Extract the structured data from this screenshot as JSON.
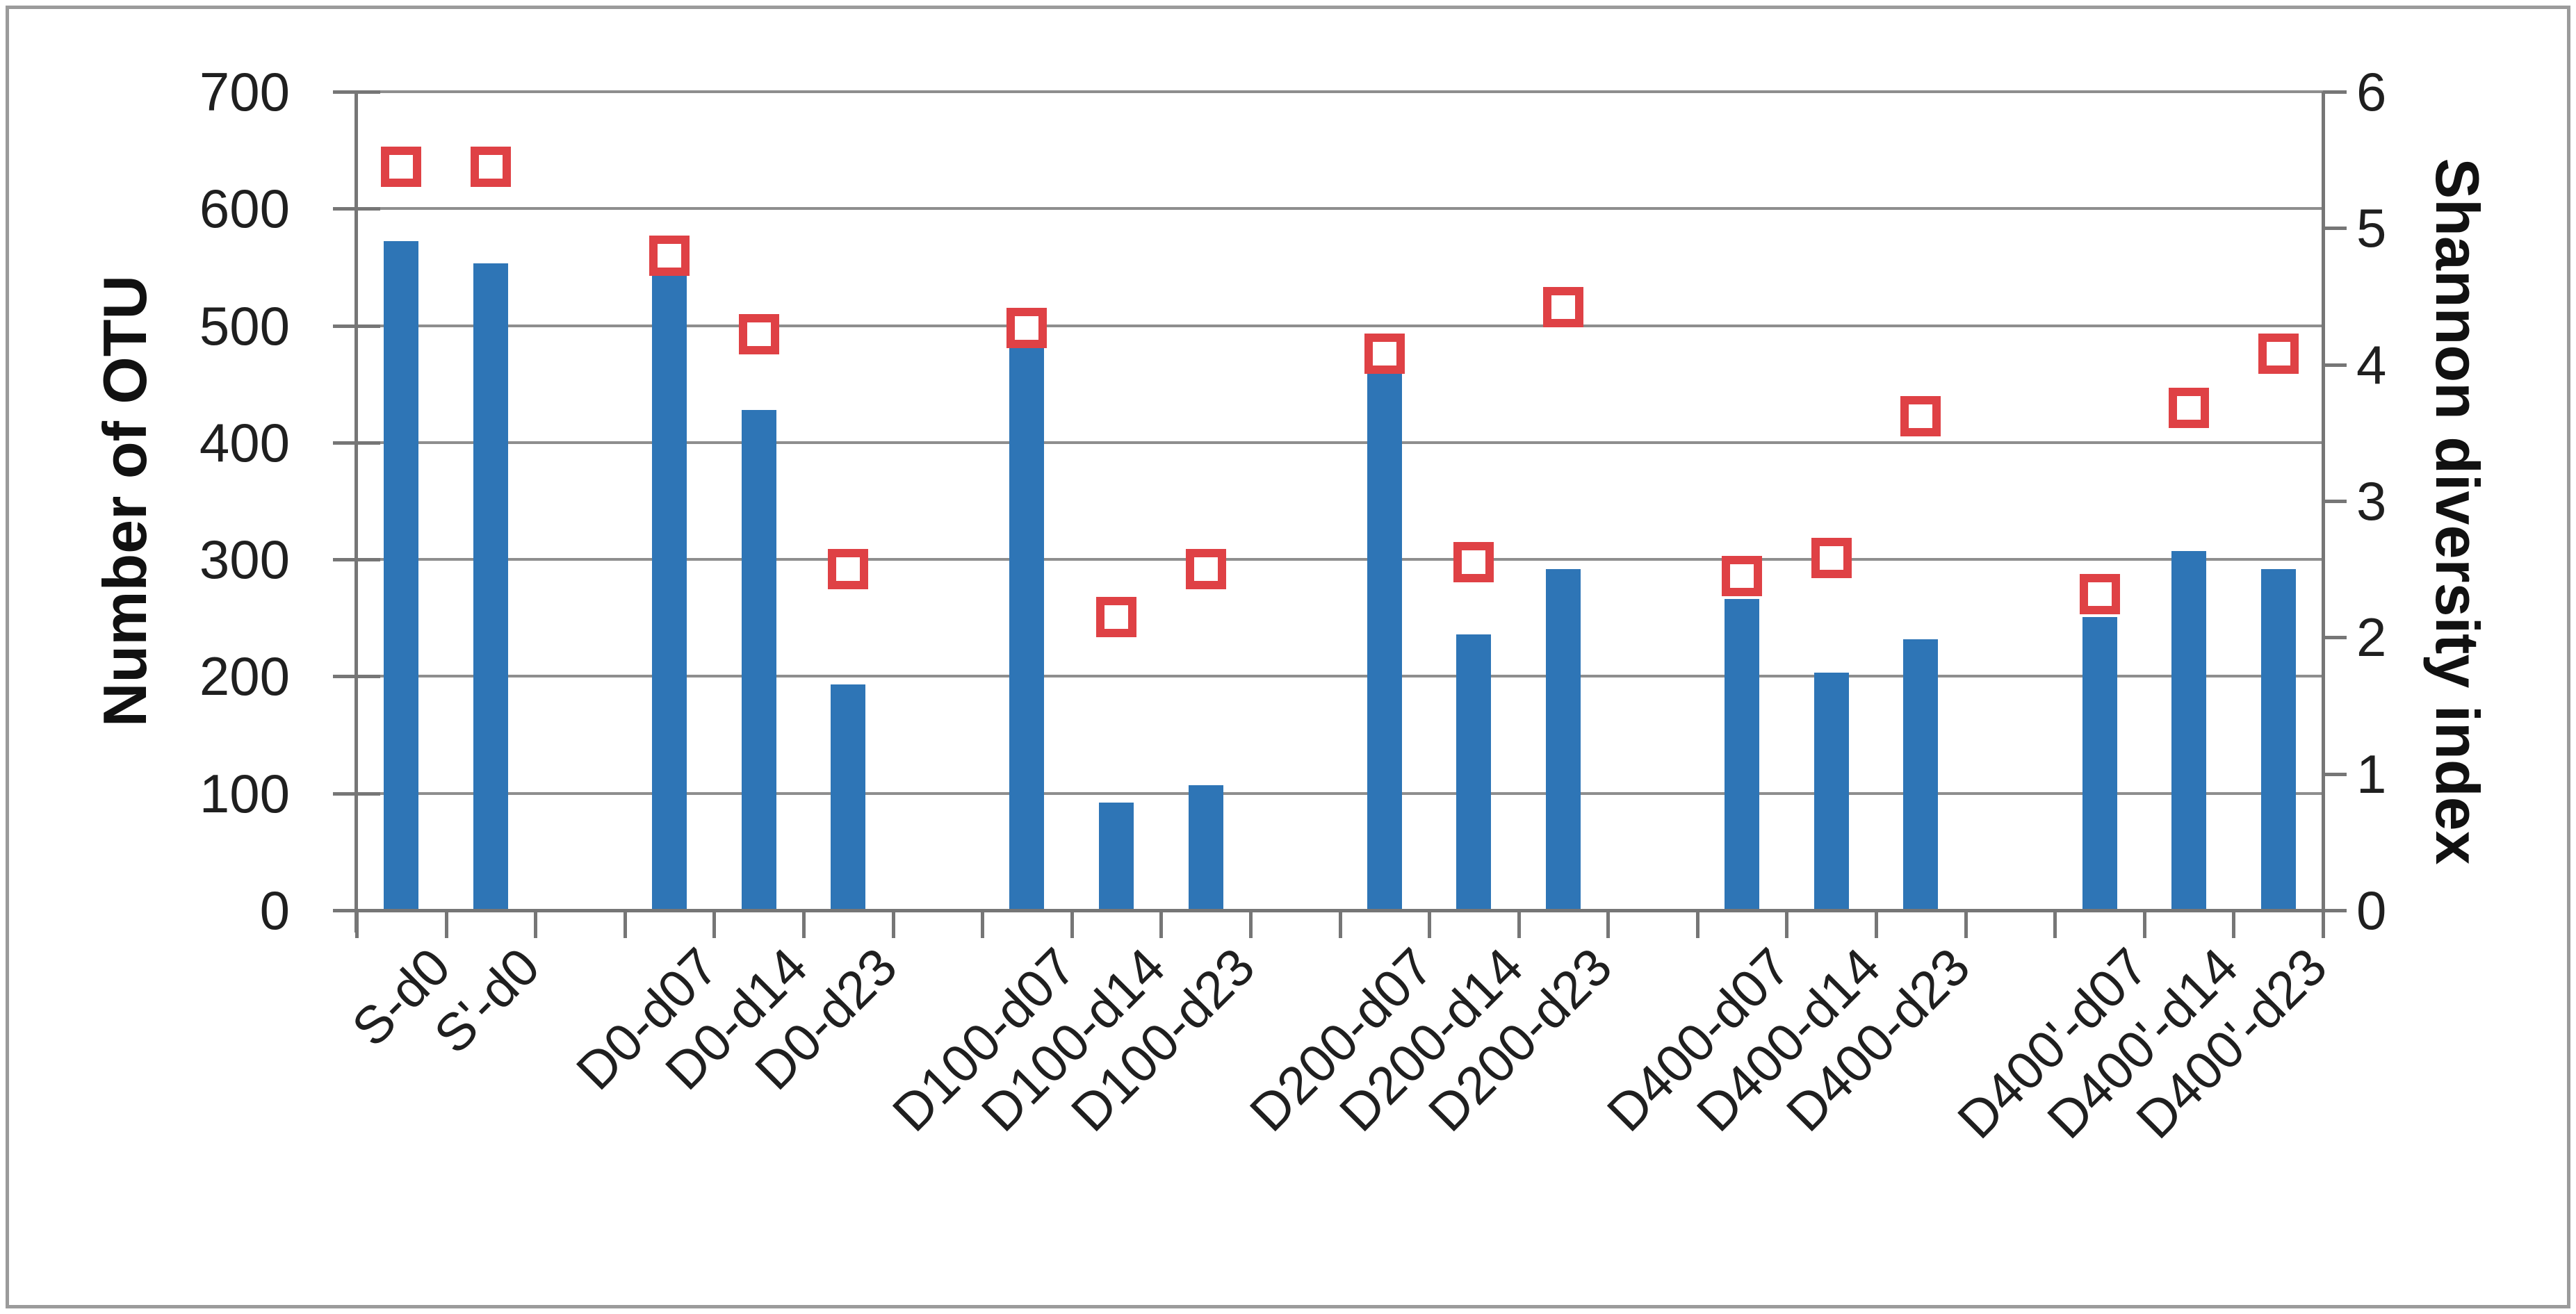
{
  "chart_data": {
    "type": "bar",
    "title": "",
    "categories": [
      "S-d0",
      "S'-d0",
      "D0-d07",
      "D0-d14",
      "D0-d23",
      "D100-d07",
      "D100-d14",
      "D100-d23",
      "D200-d07",
      "D200-d14",
      "D200-d23",
      "D400-d07",
      "D400-d14",
      "D400-d23",
      "D400'-d07",
      "D400'-d14",
      "D400'-d23"
    ],
    "groups": [
      "S",
      "S",
      "D0",
      "D0",
      "D0",
      "D100",
      "D100",
      "D100",
      "D200",
      "D200",
      "D200",
      "D400",
      "D400",
      "D400",
      "D400'",
      "D400'",
      "D400'"
    ],
    "series": [
      {
        "name": "Number of OTU",
        "type": "bar",
        "axis": "left",
        "values": [
          572,
          553,
          545,
          428,
          193,
          490,
          92,
          107,
          460,
          236,
          292,
          266,
          203,
          232,
          251,
          307,
          292
        ]
      },
      {
        "name": "Shannon diversity index",
        "type": "scatter",
        "marker": "open-square",
        "axis": "right",
        "values": [
          5.45,
          5.45,
          4.8,
          4.22,
          2.5,
          4.27,
          2.15,
          2.5,
          4.08,
          2.55,
          4.42,
          2.45,
          2.58,
          3.62,
          2.32,
          3.68,
          4.08
        ]
      }
    ],
    "left_axis": {
      "title": "Number of OTU",
      "min": 0,
      "max": 700,
      "step": 100,
      "tick_labels": [
        "700",
        "600",
        "500",
        "400",
        "300",
        "200",
        "100",
        "0"
      ]
    },
    "right_axis": {
      "title": "Shannon diversity index",
      "min": 0,
      "max": 6,
      "step": 1,
      "tick_labels": [
        "6",
        "5",
        "4",
        "3",
        "2",
        "1",
        "0"
      ]
    },
    "grid": true,
    "legend": "none"
  },
  "colors": {
    "bar": "#2e75b6",
    "marker": "#df4145",
    "gridline": "#8e8e8e",
    "axis": "#767676",
    "text": "#1f1f1f",
    "border": "#9b9b9b"
  }
}
